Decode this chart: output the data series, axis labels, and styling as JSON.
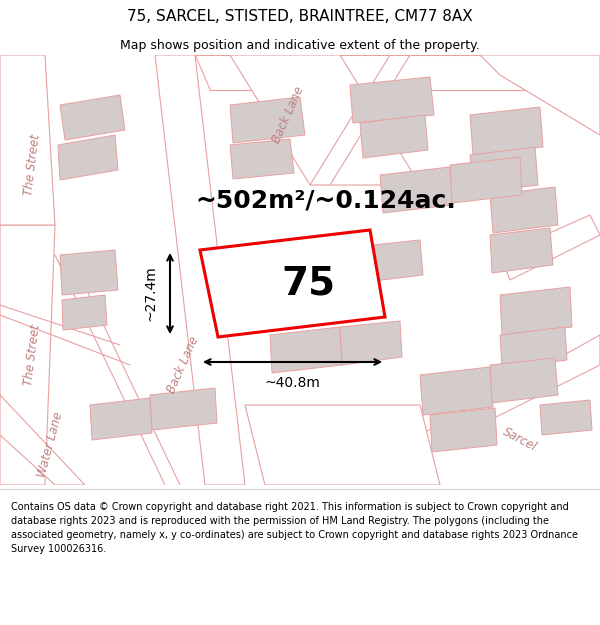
{
  "title": "75, SARCEL, STISTED, BRAINTREE, CM77 8AX",
  "subtitle": "Map shows position and indicative extent of the property.",
  "footer": "Contains OS data © Crown copyright and database right 2021. This information is subject to Crown copyright and database rights 2023 and is reproduced with the permission of HM Land Registry. The polygons (including the associated geometry, namely x, y co-ordinates) are subject to Crown copyright and database rights 2023 Ordnance Survey 100026316.",
  "area_label": "~502m²/~0.124ac.",
  "width_label": "~40.8m",
  "height_label": "~27.4m",
  "plot_number": "75",
  "map_bg": "#f7f0f0",
  "plot_fill": "#ffffff",
  "plot_edge_color": "#ee0000",
  "building_fill": "#d4cbcb",
  "building_edge": "#e8a0a0",
  "road_fill": "#ffffff",
  "road_edge": "#e8a0a0",
  "label_color": "#c08080",
  "figsize": [
    6.0,
    6.25
  ],
  "dpi": 100,
  "title_fs": 11,
  "subtitle_fs": 9,
  "footer_fs": 7,
  "area_fs": 18,
  "plot_num_fs": 28,
  "dim_fs": 10
}
